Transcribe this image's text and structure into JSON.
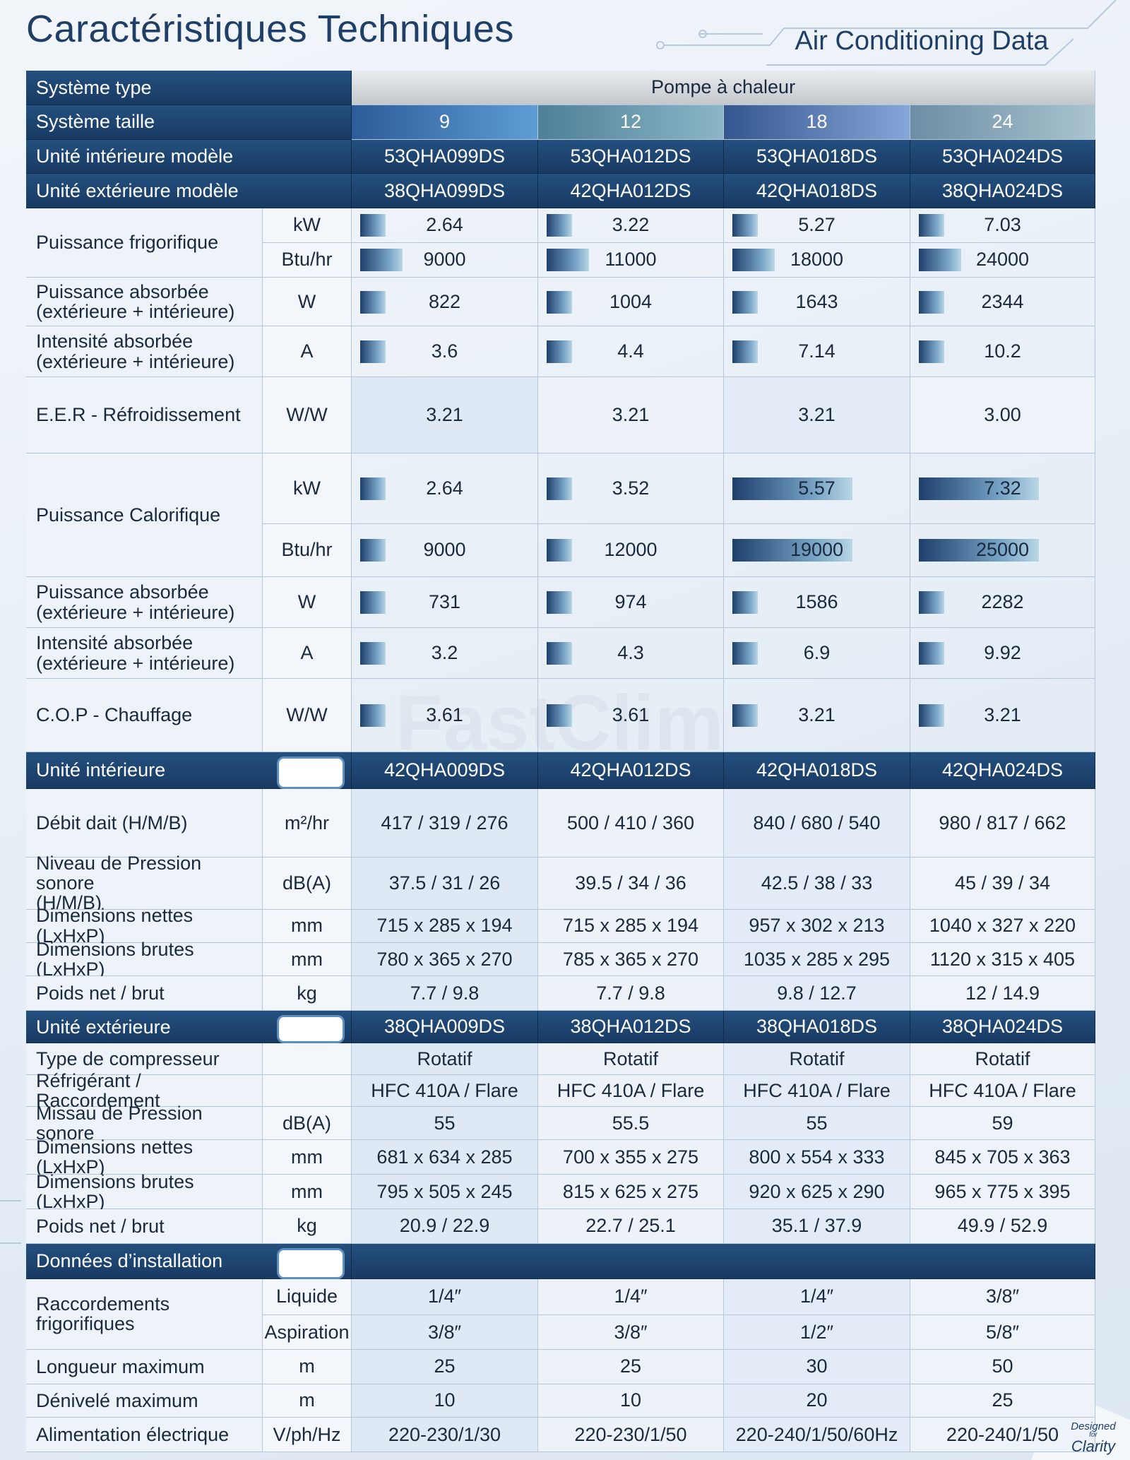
{
  "header": {
    "title": "Caractéristiques Techniques",
    "subtitle": "Air Conditioning Data"
  },
  "table": {
    "groups": [
      {
        "label": "Système type",
        "lines": [
          {
            "cells": [
              "Pompe à chaleur"
            ]
          }
        ]
      },
      {
        "label": "Système taille",
        "lines": [
          {
            "cells": [
              "9",
              "12",
              "18",
              "24"
            ]
          }
        ]
      },
      {
        "label": "Unité intérieure modèle",
        "lines": [
          {
            "cells": [
              "53QHA099DS",
              "53QHA012DS",
              "53QHA018DS",
              "53QHA024DS"
            ]
          }
        ]
      },
      {
        "label": "Unité extérieure modèle",
        "lines": [
          {
            "cells": [
              "38QHA099DS",
              "42QHA012DS",
              "42QHA018DS",
              "38QHA024DS"
            ]
          }
        ]
      },
      {
        "label": "Puissance frigorifique",
        "lines": [
          {
            "unit": "kW",
            "cells": [
              "2.64",
              "3.22",
              "5.27",
              "7.03"
            ]
          },
          {
            "unit": "Btu/hr",
            "cells": [
              "9000",
              "11000",
              "18000",
              "24000"
            ]
          }
        ]
      },
      {
        "label": "Puissance absorbée\n(extérieure + intérieure)",
        "lines": [
          {
            "unit": "W",
            "cells": [
              "822",
              "1004",
              "1643",
              "2344"
            ]
          }
        ]
      },
      {
        "label": "Intensité absorbée\n(extérieure + intérieure)",
        "lines": [
          {
            "unit": "A",
            "cells": [
              "3.6",
              "4.4",
              "7.14",
              "10.2"
            ]
          }
        ]
      },
      {
        "label": "E.E.R - Réfroidissement",
        "lines": [
          {
            "unit": "W/W",
            "cells": [
              "3.21",
              "3.21",
              "3.21",
              "3.00"
            ]
          }
        ]
      },
      {
        "label": "Puissance Calorifique",
        "lines": [
          {
            "unit": "kW",
            "cells": [
              "2.64",
              "3.52",
              "5.57",
              "7.32"
            ]
          },
          {
            "unit": "Btu/hr",
            "cells": [
              "9000",
              "12000",
              "19000",
              "25000"
            ]
          }
        ]
      },
      {
        "label": "Puissance absorbée\n(extérieure + intérieure)",
        "lines": [
          {
            "unit": "W",
            "cells": [
              "731",
              "974",
              "1586",
              "2282"
            ]
          }
        ]
      },
      {
        "label": "Intensité absorbée\n(extérieure + intérieure)",
        "lines": [
          {
            "unit": "A",
            "cells": [
              "3.2",
              "4.3",
              "6.9",
              "9.92"
            ]
          }
        ]
      },
      {
        "label": "C.O.P - Chauffage",
        "lines": [
          {
            "unit": "W/W",
            "cells": [
              "3.61",
              "3.61",
              "3.21",
              "3.21"
            ]
          }
        ]
      },
      {
        "label": "Unité intérieure",
        "lines": [
          {
            "cells": [
              "42QHA009DS",
              "42QHA012DS",
              "42QHA018DS",
              "42QHA024DS"
            ]
          }
        ]
      },
      {
        "label": "Débit dait (H/M/B)",
        "lines": [
          {
            "unit": "m²/hr",
            "cells": [
              "417 / 319 / 276",
              "500 / 410 / 360",
              "840 / 680 / 540",
              "980 / 817 / 662"
            ]
          }
        ]
      },
      {
        "label": "Niveau de Pression sonore\n(H/M/B)",
        "lines": [
          {
            "unit": "dB(A)",
            "cells": [
              "37.5 / 31 / 26",
              "39.5 / 34 / 36",
              "42.5 / 38 / 33",
              "45 / 39 / 34"
            ]
          }
        ]
      },
      {
        "label": "Dimensions nettes (LxHxP)",
        "lines": [
          {
            "unit": "mm",
            "cells": [
              "715 x 285 x 194",
              "715 x 285 x 194",
              "957 x 302 x 213",
              "1040 x 327 x 220"
            ]
          }
        ]
      },
      {
        "label": "Dimensions brutes (LxHxP)",
        "lines": [
          {
            "unit": "mm",
            "cells": [
              "780 x 365 x 270",
              "785 x 365 x 270",
              "1035 x 285 x 295",
              "1120 x 315 x 405"
            ]
          }
        ]
      },
      {
        "label": "Poids net / brut",
        "lines": [
          {
            "unit": "kg",
            "cells": [
              "7.7 / 9.8",
              "7.7 / 9.8",
              "9.8 / 12.7",
              "12 / 14.9"
            ]
          }
        ]
      },
      {
        "label": "Unité extérieure",
        "lines": [
          {
            "cells": [
              "38QHA009DS",
              "38QHA012DS",
              "38QHA018DS",
              "38QHA024DS"
            ]
          }
        ]
      },
      {
        "label": "Type de compresseur",
        "lines": [
          {
            "cells": [
              "Rotatif",
              "Rotatif",
              "Rotatif",
              "Rotatif"
            ]
          }
        ]
      },
      {
        "label": "Réfrigérant / Raccordement",
        "lines": [
          {
            "cells": [
              "HFC 410A / Flare",
              "HFC 410A / Flare",
              "HFC 410A / Flare",
              "HFC 410A / Flare"
            ]
          }
        ]
      },
      {
        "label": "Missau de Pression sonore",
        "lines": [
          {
            "unit": "dB(A)",
            "cells": [
              "55",
              "55.5",
              "55",
              "59"
            ]
          }
        ]
      },
      {
        "label": "Dimensions nettes (LxHxP)",
        "lines": [
          {
            "unit": "mm",
            "cells": [
              "681 x 634 x 285",
              "700 x 355 x 275",
              "800 x 554 x 333",
              "845 x 705 x 363"
            ]
          }
        ]
      },
      {
        "label": "Dimensions brutes (LxHxP)",
        "lines": [
          {
            "unit": "mm",
            "cells": [
              "795 x 505 x 245",
              "815 x 625 x 275",
              "920 x 625 x 290",
              "965 x 775 x 395"
            ]
          }
        ]
      },
      {
        "label": "Poids net / brut",
        "lines": [
          {
            "unit": "kg",
            "cells": [
              "20.9 / 22.9",
              "22.7 / 25.1",
              "35.1 / 37.9",
              "49.9 / 52.9"
            ]
          }
        ]
      },
      {
        "label": "Données d’installation"
      },
      {
        "label": "Raccordements frigorifiques",
        "lines": [
          {
            "unit": "Liquide",
            "cells": [
              "1/4″",
              "1/4″",
              "1/4″",
              "3/8″"
            ]
          },
          {
            "unit": "Aspiration",
            "cells": [
              "3/8″",
              "3/8″",
              "1/2″",
              "5/8″"
            ]
          }
        ]
      },
      {
        "label": "Longueur maximum",
        "lines": [
          {
            "unit": "m",
            "cells": [
              "25",
              "25",
              "30",
              "50"
            ]
          }
        ]
      },
      {
        "label": "Dénivelé maximum",
        "lines": [
          {
            "unit": "m",
            "cells": [
              "10",
              "10",
              "20",
              "25"
            ]
          }
        ]
      },
      {
        "label": "Alimentation électrique",
        "lines": [
          {
            "unit": "V/ph/Hz",
            "cells": [
              "220-230/1/30",
              "220-230/1/50",
              "220-240/1/50/60Hz",
              "220-240/1/50"
            ]
          }
        ]
      }
    ]
  },
  "watermark": "FastClim",
  "badge": {
    "line1": "Designed",
    "line2": "for",
    "line3": "Clarity"
  }
}
